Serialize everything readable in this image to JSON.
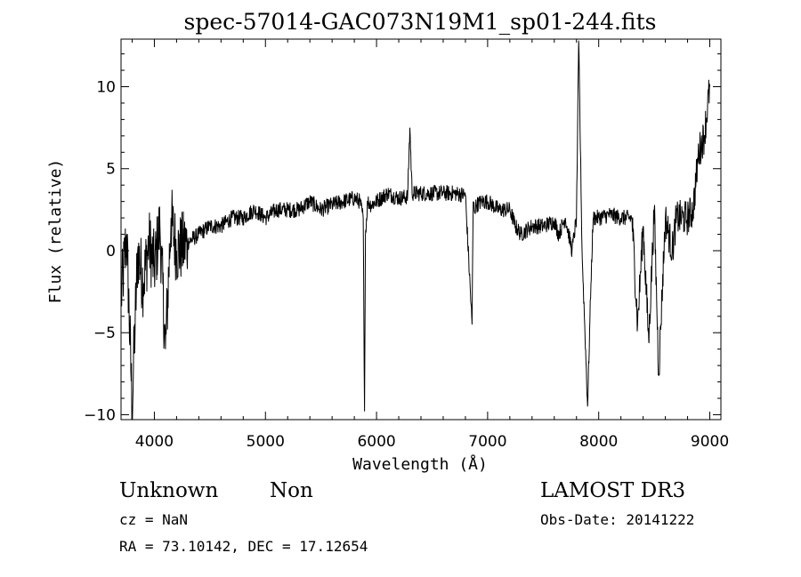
{
  "chart_data": {
    "type": "line",
    "title": "spec-57014-GAC073N19M1_sp01-244.fits",
    "xlabel": "Wavelength (Å)",
    "ylabel": "Flux (relative)",
    "xlim": [
      3700,
      9100
    ],
    "ylim": [
      -10.3,
      12.9
    ],
    "x_ticks": [
      4000,
      5000,
      6000,
      7000,
      8000,
      9000
    ],
    "y_ticks": [
      -10,
      -5,
      0,
      5,
      10
    ],
    "x_tick_labels": [
      "4000",
      "5000",
      "6000",
      "7000",
      "8000",
      "9000"
    ],
    "y_tick_labels": [
      "−10",
      "−5",
      "0",
      "5",
      "10"
    ],
    "grid": false,
    "series": [
      {
        "x": [
          3700,
          3750,
          3800,
          3850,
          3900,
          3950,
          4000,
          4050,
          4100,
          4150,
          4200,
          4300,
          4400,
          4500,
          4600,
          4700,
          4800,
          4900,
          5000,
          5100,
          5200,
          5300,
          5400,
          5500,
          5600,
          5700,
          5800,
          5850,
          5880,
          5892,
          5900,
          5920,
          5950,
          6000,
          6100,
          6200,
          6280,
          6300,
          6320,
          6400,
          6500,
          6600,
          6700,
          6800,
          6860,
          6870,
          6880,
          6900,
          6950,
          7000,
          7100,
          7200,
          7250,
          7300,
          7400,
          7500,
          7600,
          7640,
          7700,
          7760,
          7800,
          7820,
          7850,
          7900,
          7930,
          7950,
          8000,
          8100,
          8200,
          8300,
          8350,
          8400,
          8450,
          8500,
          8540,
          8600,
          8662,
          8700,
          8760,
          8800,
          8850,
          8900,
          8950,
          9000
        ],
        "y": [
          -3,
          1,
          -9.5,
          0,
          -2,
          0.5,
          -1,
          1.5,
          -6,
          2,
          0,
          0.5,
          1,
          1.5,
          1.5,
          2,
          2,
          2.5,
          2,
          2.5,
          2.5,
          2.5,
          3,
          2.5,
          2.8,
          3,
          3.2,
          3,
          2,
          -9.8,
          1,
          3,
          2.8,
          3,
          3.5,
          3.2,
          3.3,
          7.5,
          3.5,
          3.5,
          3.5,
          3.5,
          3.5,
          3.4,
          -4.5,
          3,
          2.5,
          2.8,
          3,
          3,
          2.5,
          2.5,
          1.5,
          1,
          1.5,
          1.5,
          1.8,
          1,
          2,
          0,
          2,
          12.8,
          0,
          -9.5,
          -2,
          2,
          2,
          2.2,
          2,
          2,
          -4.5,
          1.5,
          -5.5,
          2.5,
          -7.5,
          2,
          0,
          2,
          2,
          2,
          2.5,
          6,
          7,
          10
        ]
      }
    ]
  },
  "info": {
    "class": "Unknown",
    "subclass": "Non",
    "survey": "LAMOST DR3",
    "cz": "cz = NaN",
    "obs_date": "Obs-Date: 20141222",
    "coords": "RA =  73.10142, DEC =  17.12654"
  }
}
